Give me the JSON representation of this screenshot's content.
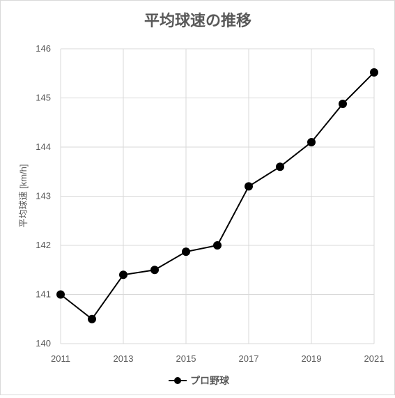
{
  "chart_data": {
    "type": "line",
    "title": "平均球速の推移",
    "xlabel": "",
    "ylabel": "平均球速 [km/h]",
    "x": [
      2011,
      2012,
      2013,
      2014,
      2015,
      2016,
      2017,
      2018,
      2019,
      2020,
      2021
    ],
    "xlim": [
      2011,
      2021
    ],
    "x_ticks": [
      "2011",
      "2013",
      "2015",
      "2017",
      "2019",
      "2021"
    ],
    "ylim": [
      140,
      146
    ],
    "y_ticks": [
      "140",
      "141",
      "142",
      "143",
      "144",
      "145",
      "146"
    ],
    "grid": true,
    "legend_position": "bottom",
    "series": [
      {
        "name": "プロ野球",
        "color": "#000000",
        "marker": "circle",
        "values": [
          141.0,
          140.5,
          141.4,
          141.5,
          141.87,
          142.0,
          143.2,
          143.6,
          144.1,
          144.88,
          145.52
        ]
      }
    ],
    "colors": {
      "grid": "#d9d9d9",
      "text": "#595959",
      "series": "#000000"
    }
  }
}
